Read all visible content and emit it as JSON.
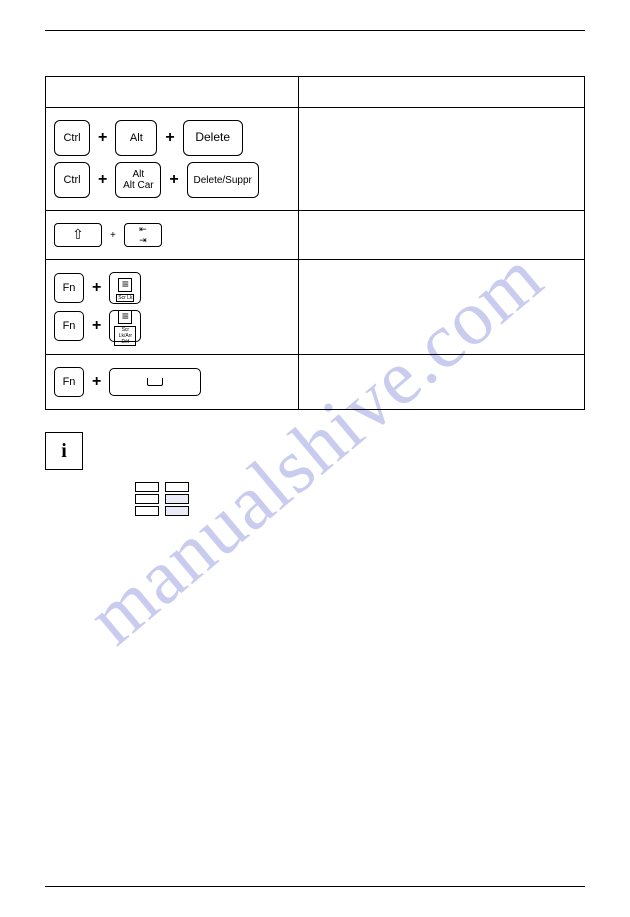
{
  "watermark": "manualshive.com",
  "table": {
    "rows": [
      {
        "combos": [
          {
            "keys": [
              "Ctrl",
              "Alt",
              "Delete"
            ],
            "joiner": "+"
          },
          {
            "keys": [
              "Ctrl",
              "Alt|Alt Car",
              "Delete/Suppr"
            ],
            "joiner": "+"
          }
        ]
      },
      {
        "combos": [
          {
            "keys": [
              "⇧",
              "tab-arrows"
            ],
            "joiner": "+"
          }
        ]
      },
      {
        "combos": [
          {
            "keys": [
              "Fn",
              "scroll:Scr Lk"
            ],
            "joiner": "+"
          },
          {
            "keys": [
              "Fn",
              "scroll:Scr Lk/Arr Déf"
            ],
            "joiner": "+"
          }
        ]
      },
      {
        "combos": [
          {
            "keys": [
              "Fn",
              "space"
            ],
            "joiner": "+"
          }
        ]
      }
    ]
  },
  "labels": {
    "ctrl": "Ctrl",
    "alt": "Alt",
    "delete": "Delete",
    "altcar_top": "Alt",
    "altcar_bot": "Alt Car",
    "delete_suppr": "Delete/Suppr",
    "shift": "⇧",
    "fn": "Fn",
    "scrlk": "Scr Lk",
    "scrlk_fr": "Scr Lk/Arr Déf",
    "info": "i",
    "plus": "+"
  },
  "colors": {
    "border": "#000000",
    "background": "#ffffff",
    "watermark": "rgba(100,110,210,0.35)"
  }
}
